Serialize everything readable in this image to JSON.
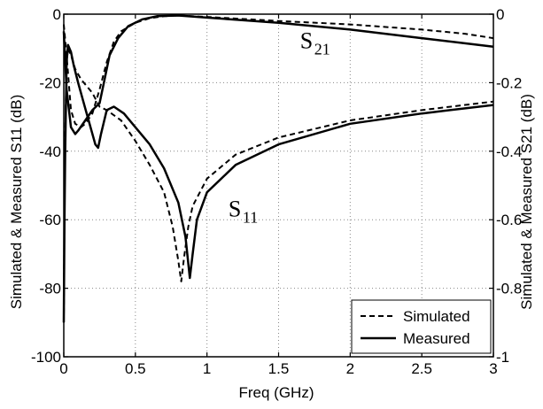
{
  "chart_data": {
    "type": "line",
    "xlabel": "Freq (GHz)",
    "ylabel_left": "Simulated & Measured S11 (dB)",
    "ylabel_right": "Simulated & Measured S21 (dB)",
    "xlim": [
      0,
      3
    ],
    "ylim_left": [
      -100,
      0
    ],
    "ylim_right": [
      -1,
      0
    ],
    "x_ticks": [
      {
        "value": 0,
        "label": "0"
      },
      {
        "value": 0.5,
        "label": "0.5"
      },
      {
        "value": 1,
        "label": "1"
      },
      {
        "value": 1.5,
        "label": "1.5"
      },
      {
        "value": 2,
        "label": "2"
      },
      {
        "value": 2.5,
        "label": "2.5"
      },
      {
        "value": 3,
        "label": "3"
      }
    ],
    "y_ticks_left": [
      {
        "value": 0,
        "label": "0"
      },
      {
        "value": -20,
        "label": "-20"
      },
      {
        "value": -40,
        "label": "-40"
      },
      {
        "value": -60,
        "label": "-60"
      },
      {
        "value": -80,
        "label": "-80"
      },
      {
        "value": -100,
        "label": "-100"
      }
    ],
    "y_ticks_right": [
      {
        "value": 0,
        "label": "0"
      },
      {
        "value": -0.2,
        "label": "-0.2"
      },
      {
        "value": -0.4,
        "label": "-0.4"
      },
      {
        "value": -0.6,
        "label": "-0.6"
      },
      {
        "value": -0.8,
        "label": "-0.8"
      },
      {
        "value": -1,
        "label": "-1"
      }
    ],
    "grid": true,
    "legend": {
      "position": "bottom-right",
      "entries": [
        {
          "label": "Simulated",
          "style": "dashed"
        },
        {
          "label": "Measured",
          "style": "solid"
        }
      ]
    },
    "annotations": [
      {
        "main": "S",
        "sub": "21",
        "x": 1.65,
        "y": -10
      },
      {
        "main": "S",
        "sub": "11",
        "x": 1.15,
        "y": -59
      }
    ],
    "series": [
      {
        "label": "S11 simulated",
        "axis": "left",
        "style": "dashed",
        "points": [
          [
            0,
            -90
          ],
          [
            0.005,
            -55
          ],
          [
            0.01,
            -35
          ],
          [
            0.02,
            -14
          ],
          [
            0.03,
            -10
          ],
          [
            0.05,
            -12
          ],
          [
            0.08,
            -16
          ],
          [
            0.12,
            -19
          ],
          [
            0.16,
            -21
          ],
          [
            0.2,
            -23
          ],
          [
            0.25,
            -27
          ],
          [
            0.3,
            -28
          ],
          [
            0.4,
            -31
          ],
          [
            0.5,
            -37
          ],
          [
            0.6,
            -44
          ],
          [
            0.7,
            -52
          ],
          [
            0.76,
            -62
          ],
          [
            0.8,
            -72
          ],
          [
            0.82,
            -78
          ],
          [
            0.84,
            -71
          ],
          [
            0.87,
            -62
          ],
          [
            0.9,
            -56
          ],
          [
            1.0,
            -48
          ],
          [
            1.2,
            -41
          ],
          [
            1.5,
            -36
          ],
          [
            2.0,
            -31
          ],
          [
            2.5,
            -28
          ],
          [
            3.0,
            -25.5
          ]
        ]
      },
      {
        "label": "S11 measured",
        "axis": "left",
        "style": "solid",
        "points": [
          [
            0,
            -90
          ],
          [
            0.005,
            -60
          ],
          [
            0.01,
            -40
          ],
          [
            0.02,
            -14
          ],
          [
            0.03,
            -9
          ],
          [
            0.05,
            -11
          ],
          [
            0.07,
            -15
          ],
          [
            0.1,
            -20
          ],
          [
            0.14,
            -26
          ],
          [
            0.18,
            -32
          ],
          [
            0.22,
            -38
          ],
          [
            0.24,
            -39
          ],
          [
            0.26,
            -35
          ],
          [
            0.3,
            -28
          ],
          [
            0.35,
            -27
          ],
          [
            0.42,
            -29
          ],
          [
            0.5,
            -33
          ],
          [
            0.6,
            -38
          ],
          [
            0.7,
            -45
          ],
          [
            0.8,
            -55
          ],
          [
            0.85,
            -65
          ],
          [
            0.88,
            -77
          ],
          [
            0.9,
            -70
          ],
          [
            0.93,
            -60
          ],
          [
            1.0,
            -52
          ],
          [
            1.2,
            -44
          ],
          [
            1.5,
            -38
          ],
          [
            2.0,
            -32
          ],
          [
            2.5,
            -29
          ],
          [
            3.0,
            -26.5
          ]
        ]
      },
      {
        "label": "S21 simulated",
        "axis": "right",
        "style": "dashed",
        "points": [
          [
            0,
            -0.03
          ],
          [
            0.02,
            -0.12
          ],
          [
            0.05,
            -0.28
          ],
          [
            0.08,
            -0.32
          ],
          [
            0.12,
            -0.33
          ],
          [
            0.15,
            -0.32
          ],
          [
            0.2,
            -0.29
          ],
          [
            0.25,
            -0.22
          ],
          [
            0.3,
            -0.14
          ],
          [
            0.35,
            -0.08
          ],
          [
            0.4,
            -0.05
          ],
          [
            0.5,
            -0.025
          ],
          [
            0.6,
            -0.012
          ],
          [
            0.7,
            -0.006
          ],
          [
            0.8,
            -0.004
          ],
          [
            1.0,
            -0.008
          ],
          [
            1.5,
            -0.02
          ],
          [
            2.0,
            -0.03
          ],
          [
            2.5,
            -0.045
          ],
          [
            2.8,
            -0.057
          ],
          [
            3.0,
            -0.07
          ]
        ]
      },
      {
        "label": "S21 measured",
        "axis": "right",
        "style": "solid",
        "points": [
          [
            0,
            -0.05
          ],
          [
            0.02,
            -0.22
          ],
          [
            0.05,
            -0.33
          ],
          [
            0.08,
            -0.35
          ],
          [
            0.1,
            -0.34
          ],
          [
            0.15,
            -0.31
          ],
          [
            0.2,
            -0.28
          ],
          [
            0.25,
            -0.26
          ],
          [
            0.28,
            -0.2
          ],
          [
            0.32,
            -0.12
          ],
          [
            0.38,
            -0.07
          ],
          [
            0.45,
            -0.035
          ],
          [
            0.55,
            -0.015
          ],
          [
            0.65,
            -0.006
          ],
          [
            0.8,
            -0.004
          ],
          [
            1.0,
            -0.01
          ],
          [
            1.5,
            -0.025
          ],
          [
            2.0,
            -0.045
          ],
          [
            2.5,
            -0.07
          ],
          [
            2.8,
            -0.085
          ],
          [
            3.0,
            -0.095
          ]
        ]
      }
    ]
  }
}
